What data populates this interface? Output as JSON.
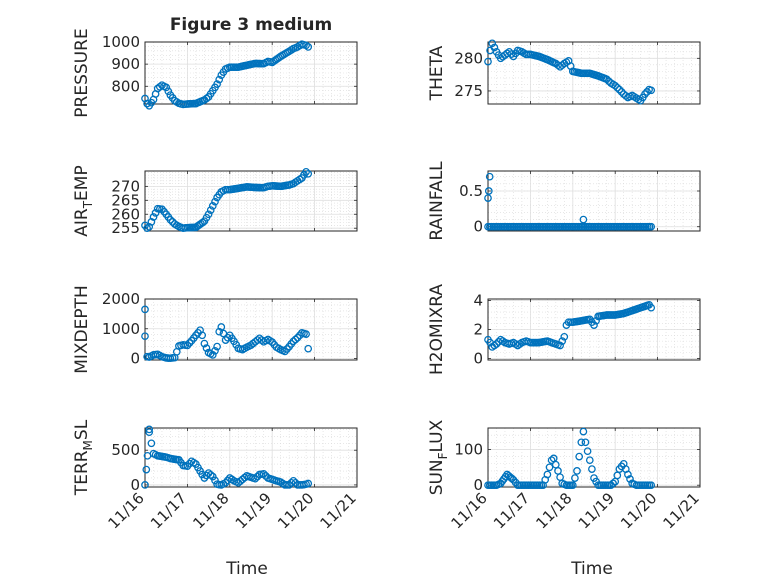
{
  "figure_title": "Figure 3 medium",
  "x_tick_labels": [
    "11/16",
    "11/17",
    "11/18",
    "11/19",
    "11/20",
    "11/21"
  ],
  "x_axis_label": "Time",
  "marker_color": "#0072BD",
  "chart_data": [
    {
      "type": "scatter",
      "marker": "circle-open",
      "grid": true,
      "minor_grid": true,
      "ylabel": "PRESSURE",
      "xlim": [
        0,
        5
      ],
      "ylim": [
        720,
        1000
      ],
      "yticks": [
        800,
        900,
        1000
      ],
      "xlabel": "",
      "anchors": [
        [
          0.0,
          745
        ],
        [
          0.05,
          722
        ],
        [
          0.1,
          712
        ],
        [
          0.2,
          740
        ],
        [
          0.3,
          790
        ],
        [
          0.4,
          805
        ],
        [
          0.5,
          795
        ],
        [
          0.6,
          760
        ],
        [
          0.7,
          735
        ],
        [
          0.8,
          723
        ],
        [
          0.9,
          718
        ],
        [
          1.0,
          720
        ],
        [
          1.2,
          722
        ],
        [
          1.4,
          738
        ],
        [
          1.5,
          752
        ],
        [
          1.6,
          780
        ],
        [
          1.7,
          810
        ],
        [
          1.8,
          850
        ],
        [
          1.9,
          878
        ],
        [
          2.0,
          886
        ],
        [
          2.2,
          886
        ],
        [
          2.4,
          895
        ],
        [
          2.6,
          903
        ],
        [
          2.8,
          902
        ],
        [
          2.9,
          912
        ],
        [
          3.0,
          908
        ],
        [
          3.2,
          935
        ],
        [
          3.4,
          958
        ],
        [
          3.5,
          970
        ],
        [
          3.6,
          978
        ],
        [
          3.7,
          990
        ],
        [
          3.8,
          985
        ],
        [
          3.85,
          978
        ]
      ],
      "spikes": []
    },
    {
      "type": "scatter",
      "marker": "circle-open",
      "grid": true,
      "minor_grid": true,
      "ylabel": "THETA",
      "xlim": [
        0,
        5
      ],
      "ylim": [
        273,
        282.5
      ],
      "yticks": [
        275,
        280
      ],
      "xlabel": "",
      "anchors": [
        [
          0.0,
          279.5
        ],
        [
          0.05,
          281.2
        ],
        [
          0.1,
          282.3
        ],
        [
          0.2,
          281
        ],
        [
          0.3,
          280
        ],
        [
          0.4,
          280.5
        ],
        [
          0.5,
          281
        ],
        [
          0.6,
          280.3
        ],
        [
          0.7,
          281.2
        ],
        [
          0.8,
          281
        ],
        [
          0.9,
          280.6
        ],
        [
          1.0,
          280.6
        ],
        [
          1.2,
          280.3
        ],
        [
          1.4,
          279.8
        ],
        [
          1.6,
          279.2
        ],
        [
          1.7,
          278.7
        ],
        [
          1.8,
          279.2
        ],
        [
          1.9,
          279.6
        ],
        [
          2.0,
          278
        ],
        [
          2.2,
          277.7
        ],
        [
          2.4,
          277.7
        ],
        [
          2.6,
          277.3
        ],
        [
          2.8,
          276.8
        ],
        [
          2.9,
          276.2
        ],
        [
          3.0,
          275.8
        ],
        [
          3.1,
          275.2
        ],
        [
          3.2,
          274.5
        ],
        [
          3.3,
          274
        ],
        [
          3.4,
          274.3
        ],
        [
          3.5,
          273.9
        ],
        [
          3.6,
          273.5
        ],
        [
          3.7,
          274.5
        ],
        [
          3.8,
          275.2
        ],
        [
          3.85,
          275.1
        ]
      ],
      "spikes": []
    },
    {
      "type": "scatter",
      "marker": "circle-open",
      "grid": true,
      "minor_grid": true,
      "ylabel": "AIR_TEMP",
      "ylabel_main": "AIR",
      "ylabel_sub": "T",
      "ylabel_rest": "EMP",
      "xlim": [
        0,
        5
      ],
      "ylim": [
        254,
        275.5
      ],
      "yticks": [
        255,
        260,
        265,
        270
      ],
      "xlabel": "",
      "anchors": [
        [
          0.0,
          256
        ],
        [
          0.05,
          255
        ],
        [
          0.1,
          255.5
        ],
        [
          0.2,
          259
        ],
        [
          0.3,
          262
        ],
        [
          0.4,
          261.8
        ],
        [
          0.5,
          260
        ],
        [
          0.6,
          258
        ],
        [
          0.7,
          256.5
        ],
        [
          0.8,
          255.6
        ],
        [
          0.9,
          255
        ],
        [
          1.0,
          255.2
        ],
        [
          1.2,
          255.3
        ],
        [
          1.4,
          257.5
        ],
        [
          1.5,
          260
        ],
        [
          1.6,
          263
        ],
        [
          1.7,
          266
        ],
        [
          1.8,
          268
        ],
        [
          1.9,
          268.8
        ],
        [
          2.0,
          268.8
        ],
        [
          2.2,
          269.3
        ],
        [
          2.4,
          269.8
        ],
        [
          2.6,
          269.6
        ],
        [
          2.8,
          269.5
        ],
        [
          2.9,
          270
        ],
        [
          3.0,
          270.2
        ],
        [
          3.2,
          270
        ],
        [
          3.4,
          270.5
        ],
        [
          3.5,
          271
        ],
        [
          3.6,
          272
        ],
        [
          3.7,
          273
        ],
        [
          3.8,
          275.2
        ],
        [
          3.85,
          274.5
        ]
      ],
      "spikes": []
    },
    {
      "type": "scatter",
      "marker": "circle-open",
      "grid": true,
      "minor_grid": true,
      "ylabel": "RAINFALL",
      "xlim": [
        0,
        5
      ],
      "ylim": [
        -0.06,
        0.78
      ],
      "yticks": [
        0,
        0.5
      ],
      "xlabel": "",
      "anchors": [
        [
          0.0,
          0
        ],
        [
          3.85,
          0
        ]
      ],
      "spikes": [
        [
          0.0,
          0.4
        ],
        [
          0.02,
          0.5
        ],
        [
          0.04,
          0.7
        ],
        [
          2.25,
          0.1
        ]
      ]
    },
    {
      "type": "scatter",
      "marker": "circle-open",
      "grid": true,
      "minor_grid": true,
      "ylabel": "MIXDEPTH",
      "xlim": [
        0,
        5
      ],
      "ylim": [
        -50,
        2000
      ],
      "yticks": [
        0,
        1000,
        2000
      ],
      "xlabel": "",
      "anchors": [
        [
          0.0,
          750
        ],
        [
          0.05,
          60
        ],
        [
          0.1,
          50
        ],
        [
          0.2,
          120
        ],
        [
          0.3,
          140
        ],
        [
          0.4,
          60
        ],
        [
          0.5,
          20
        ],
        [
          0.6,
          10
        ],
        [
          0.7,
          30
        ],
        [
          0.8,
          420
        ],
        [
          0.9,
          460
        ],
        [
          1.0,
          440
        ],
        [
          1.1,
          600
        ],
        [
          1.2,
          780
        ],
        [
          1.3,
          950
        ],
        [
          1.35,
          780
        ],
        [
          1.4,
          500
        ],
        [
          1.5,
          200
        ],
        [
          1.6,
          120
        ],
        [
          1.7,
          400
        ],
        [
          1.75,
          900
        ],
        [
          1.8,
          1060
        ],
        [
          1.9,
          620
        ],
        [
          2.0,
          780
        ],
        [
          2.1,
          580
        ],
        [
          2.2,
          340
        ],
        [
          2.3,
          300
        ],
        [
          2.4,
          380
        ],
        [
          2.5,
          450
        ],
        [
          2.6,
          560
        ],
        [
          2.7,
          680
        ],
        [
          2.8,
          560
        ],
        [
          2.9,
          640
        ],
        [
          3.0,
          550
        ],
        [
          3.1,
          380
        ],
        [
          3.2,
          300
        ],
        [
          3.3,
          240
        ],
        [
          3.4,
          400
        ],
        [
          3.5,
          580
        ],
        [
          3.6,
          700
        ],
        [
          3.7,
          860
        ],
        [
          3.8,
          820
        ],
        [
          3.85,
          330
        ]
      ],
      "spikes": [
        [
          0.0,
          1650
        ]
      ]
    },
    {
      "type": "scatter",
      "marker": "circle-open",
      "grid": true,
      "minor_grid": true,
      "ylabel": "H2OMIXRA",
      "xlim": [
        0,
        5
      ],
      "ylim": [
        -0.1,
        4.1
      ],
      "yticks": [
        0,
        2,
        4
      ],
      "xlabel": "",
      "anchors": [
        [
          0.0,
          1.3
        ],
        [
          0.05,
          1.1
        ],
        [
          0.1,
          0.8
        ],
        [
          0.2,
          1.0
        ],
        [
          0.3,
          1.3
        ],
        [
          0.4,
          1.1
        ],
        [
          0.5,
          1.0
        ],
        [
          0.6,
          1.1
        ],
        [
          0.7,
          0.9
        ],
        [
          0.8,
          1.1
        ],
        [
          0.9,
          1.2
        ],
        [
          1.0,
          1.1
        ],
        [
          1.2,
          1.1
        ],
        [
          1.4,
          1.2
        ],
        [
          1.5,
          1.1
        ],
        [
          1.6,
          1.0
        ],
        [
          1.7,
          0.9
        ],
        [
          1.8,
          1.5
        ],
        [
          1.85,
          2.3
        ],
        [
          1.9,
          2.5
        ],
        [
          2.0,
          2.5
        ],
        [
          2.2,
          2.6
        ],
        [
          2.4,
          2.7
        ],
        [
          2.5,
          2.3
        ],
        [
          2.6,
          2.9
        ],
        [
          2.8,
          3.0
        ],
        [
          3.0,
          3.0
        ],
        [
          3.2,
          3.1
        ],
        [
          3.4,
          3.3
        ],
        [
          3.6,
          3.5
        ],
        [
          3.8,
          3.7
        ],
        [
          3.85,
          3.5
        ]
      ],
      "spikes": []
    },
    {
      "type": "scatter",
      "marker": "circle-open",
      "grid": true,
      "minor_grid": true,
      "ylabel": "TERR_MSL",
      "ylabel_main": "TERR",
      "ylabel_sub": "M",
      "ylabel_rest": "SL",
      "xlim": [
        0,
        5
      ],
      "ylim": [
        -30,
        820
      ],
      "yticks": [
        0,
        500
      ],
      "xlabel": "Time",
      "anchors": [
        [
          0.0,
          0
        ],
        [
          0.03,
          220
        ],
        [
          0.06,
          420
        ],
        [
          0.1,
          760
        ],
        [
          0.15,
          600
        ],
        [
          0.2,
          450
        ],
        [
          0.3,
          420
        ],
        [
          0.5,
          400
        ],
        [
          0.6,
          380
        ],
        [
          0.8,
          360
        ],
        [
          0.9,
          280
        ],
        [
          1.0,
          270
        ],
        [
          1.1,
          340
        ],
        [
          1.2,
          300
        ],
        [
          1.3,
          200
        ],
        [
          1.4,
          100
        ],
        [
          1.5,
          170
        ],
        [
          1.6,
          120
        ],
        [
          1.7,
          10
        ],
        [
          1.8,
          0
        ],
        [
          1.9,
          30
        ],
        [
          2.0,
          100
        ],
        [
          2.1,
          60
        ],
        [
          2.2,
          30
        ],
        [
          2.3,
          80
        ],
        [
          2.4,
          130
        ],
        [
          2.5,
          110
        ],
        [
          2.6,
          90
        ],
        [
          2.7,
          150
        ],
        [
          2.8,
          160
        ],
        [
          2.9,
          100
        ],
        [
          3.0,
          80
        ],
        [
          3.1,
          60
        ],
        [
          3.2,
          40
        ],
        [
          3.3,
          0
        ],
        [
          3.4,
          0
        ],
        [
          3.5,
          60
        ],
        [
          3.6,
          0
        ],
        [
          3.7,
          0
        ],
        [
          3.8,
          10
        ],
        [
          3.85,
          20
        ]
      ],
      "spikes": [
        [
          0.1,
          800
        ]
      ]
    },
    {
      "type": "scatter",
      "marker": "circle-open",
      "grid": true,
      "minor_grid": true,
      "ylabel": "SUN_FLUX",
      "ylabel_main": "SUN",
      "ylabel_sub": "F",
      "ylabel_rest": "LUX",
      "xlim": [
        0,
        5
      ],
      "ylim": [
        -5,
        160
      ],
      "yticks": [
        0,
        100
      ],
      "xlabel": "Time",
      "anchors": [
        [
          0.0,
          0
        ],
        [
          0.2,
          0
        ],
        [
          0.3,
          5
        ],
        [
          0.45,
          30
        ],
        [
          0.6,
          15
        ],
        [
          0.7,
          0
        ],
        [
          1.3,
          0
        ],
        [
          1.4,
          30
        ],
        [
          1.5,
          70
        ],
        [
          1.55,
          75
        ],
        [
          1.65,
          40
        ],
        [
          1.75,
          5
        ],
        [
          1.85,
          0
        ],
        [
          2.0,
          0
        ],
        [
          2.1,
          40
        ],
        [
          2.2,
          120
        ],
        [
          2.25,
          150
        ],
        [
          2.3,
          120
        ],
        [
          2.4,
          70
        ],
        [
          2.5,
          20
        ],
        [
          2.6,
          0
        ],
        [
          2.9,
          0
        ],
        [
          3.0,
          10
        ],
        [
          3.1,
          45
        ],
        [
          3.2,
          60
        ],
        [
          3.3,
          30
        ],
        [
          3.4,
          5
        ],
        [
          3.5,
          0
        ],
        [
          3.85,
          0
        ]
      ],
      "spikes": []
    }
  ]
}
